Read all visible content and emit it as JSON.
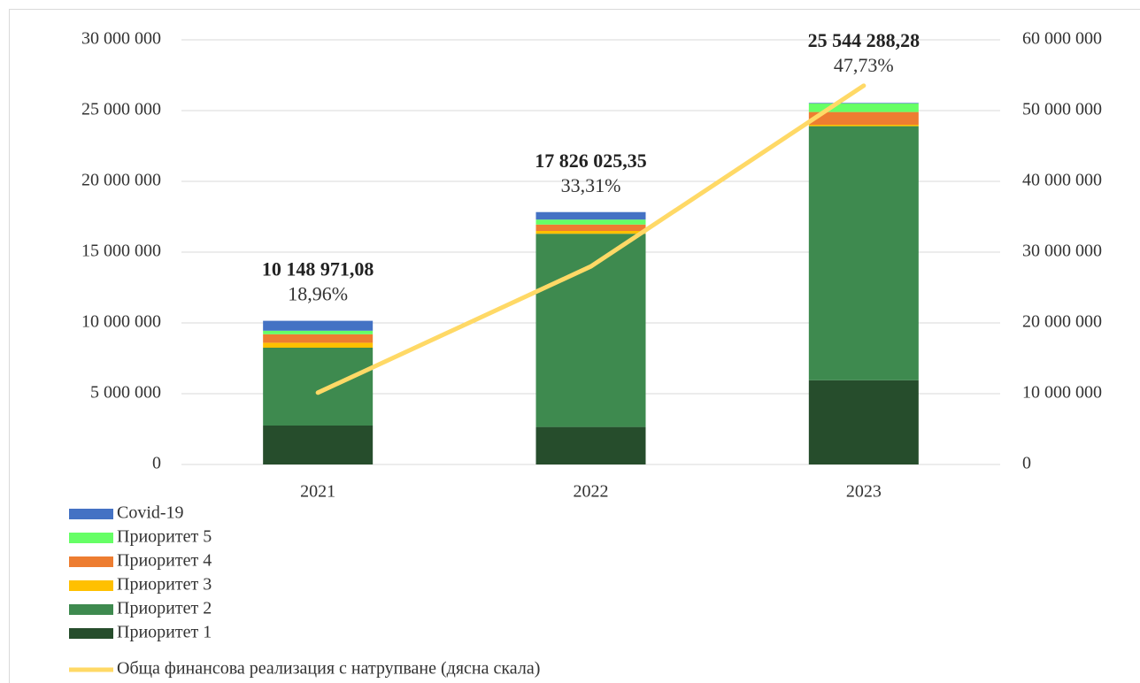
{
  "chart_data": {
    "type": "stacked_bar_line",
    "categories": [
      "2021",
      "2022",
      "2023"
    ],
    "series": [
      {
        "name": "Приоритет 1",
        "color": "#264d2c",
        "values": [
          2750000,
          2650000,
          5950000
        ]
      },
      {
        "name": "Приоритет 2",
        "color": "#3e8a4f",
        "values": [
          5500000,
          13650000,
          17950000
        ]
      },
      {
        "name": "Приоритет 3",
        "color": "#ffc000",
        "values": [
          350000,
          200000,
          100000
        ]
      },
      {
        "name": "Приоритет 4",
        "color": "#ed7d31",
        "values": [
          600000,
          450000,
          900000
        ]
      },
      {
        "name": "Приоритет 5",
        "color": "#66ff66",
        "values": [
          250000,
          350000,
          600000
        ]
      },
      {
        "name": "Covid-19",
        "color": "#4472c4",
        "values": [
          700000,
          530000,
          40000
        ]
      },
      {
        "name": "Обща финансова реализация с натрупване (дясна скала)",
        "color": "#ffd966",
        "axis": "y2",
        "type": "line",
        "values": [
          10148971.08,
          27974996.43,
          53519284.71
        ]
      }
    ],
    "totals": [
      10148971.08,
      17826025.35,
      25544288.28
    ],
    "total_labels": [
      "10 148 971,08",
      "17 826 025,35",
      "25 544 288,28"
    ],
    "shares": [
      18.96,
      33.31,
      47.73
    ],
    "share_labels": [
      "18,96%",
      "33,31%",
      "47,73%"
    ],
    "ylim": [
      0,
      30000000
    ],
    "yticks": [
      0,
      {
        "value": 5000000,
        "label": "5 000 000"
      },
      {
        "value": 10000000,
        "label": "10 000 000"
      },
      {
        "value": 15000000,
        "label": "15 000 000"
      },
      {
        "value": 20000000,
        "label": "20 000 000"
      },
      {
        "value": 25000000,
        "label": "25 000 000"
      },
      {
        "value": 30000000,
        "label": "30 000 000"
      }
    ],
    "y2lim": [
      0,
      60000000
    ],
    "y2ticks": [
      0,
      {
        "value": 10000000,
        "label": "10 000 000"
      },
      {
        "value": 20000000,
        "label": "20 000 000"
      },
      {
        "value": 30000000,
        "label": "30 000 000"
      },
      {
        "value": 40000000,
        "label": "40 000 000"
      },
      {
        "value": 50000000,
        "label": "50 000 000"
      },
      {
        "value": 60000000,
        "label": "60 000 000"
      }
    ],
    "grid": true,
    "legend": "bottom-left"
  }
}
